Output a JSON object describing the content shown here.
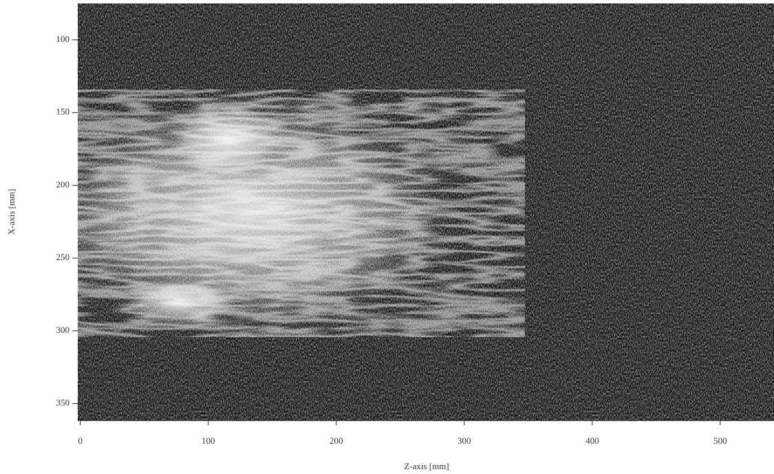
{
  "chart_data": {
    "type": "image",
    "xlabel": "Z-axis [mm]",
    "ylabel": "X-axis [mm]",
    "xlim": [
      -2,
      542
    ],
    "xticks": [
      0,
      100,
      200,
      300,
      400,
      500
    ],
    "ylim": [
      75,
      362
    ],
    "yticks": [
      100,
      150,
      200,
      250,
      300,
      350
    ],
    "y_inverted": true
  }
}
